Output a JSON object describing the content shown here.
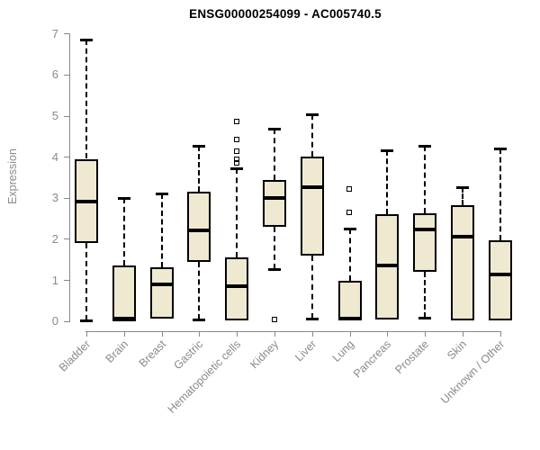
{
  "title": "ENSG00000254099 - AC005740.5",
  "chart_data": {
    "type": "boxplot",
    "title": "ENSG00000254099 - AC005740.5",
    "xlabel": "",
    "ylabel": "Expression",
    "ylim": [
      0,
      7
    ],
    "yticks": [
      0,
      1,
      2,
      3,
      4,
      5,
      6,
      7
    ],
    "grid": false,
    "x_label_rotation_deg": 45,
    "categories": [
      "Bladder",
      "Brain",
      "Breast",
      "Gastric",
      "Hematopoietic cells",
      "Kidney",
      "Liver",
      "Lung",
      "Pancreas",
      "Prostate",
      "Skin",
      "Unknown / Other"
    ],
    "boxes": [
      {
        "category": "Bladder",
        "whisker_low": 0.02,
        "q1": 1.9,
        "median": 2.9,
        "q3": 3.95,
        "whisker_high": 6.85,
        "outliers": []
      },
      {
        "category": "Brain",
        "whisker_low": 0.0,
        "q1": 0.0,
        "median": 0.05,
        "q3": 1.35,
        "whisker_high": 3.0,
        "outliers": []
      },
      {
        "category": "Breast",
        "whisker_low": 0.05,
        "q1": 0.05,
        "median": 0.9,
        "q3": 1.3,
        "whisker_high": 3.1,
        "outliers": []
      },
      {
        "category": "Gastric",
        "whisker_low": 0.03,
        "q1": 1.45,
        "median": 2.2,
        "q3": 3.15,
        "whisker_high": 4.27,
        "outliers": []
      },
      {
        "category": "Hematopoietic cells",
        "whisker_low": 0.02,
        "q1": 0.02,
        "median": 0.85,
        "q3": 1.55,
        "whisker_high": 3.72,
        "outliers": [
          3.85,
          3.92,
          4.13,
          4.4,
          4.85
        ]
      },
      {
        "category": "Kidney",
        "whisker_low": 1.27,
        "q1": 2.3,
        "median": 3.0,
        "q3": 3.44,
        "whisker_high": 4.68,
        "outliers": [
          0.02
        ]
      },
      {
        "category": "Liver",
        "whisker_low": 0.05,
        "q1": 1.6,
        "median": 3.27,
        "q3": 4.0,
        "whisker_high": 5.04,
        "outliers": []
      },
      {
        "category": "Lung",
        "whisker_low": 0.01,
        "q1": 0.01,
        "median": 0.05,
        "q3": 0.97,
        "whisker_high": 2.25,
        "outliers": [
          2.63,
          3.2
        ]
      },
      {
        "category": "Pancreas",
        "whisker_low": 0.04,
        "q1": 0.04,
        "median": 1.35,
        "q3": 2.6,
        "whisker_high": 4.15,
        "outliers": []
      },
      {
        "category": "Prostate",
        "whisker_low": 0.08,
        "q1": 1.2,
        "median": 2.22,
        "q3": 2.62,
        "whisker_high": 4.27,
        "outliers": []
      },
      {
        "category": "Skin",
        "whisker_low": 0.02,
        "q1": 0.02,
        "median": 2.05,
        "q3": 2.82,
        "whisker_high": 3.25,
        "outliers": []
      },
      {
        "category": "Unknown / Other",
        "whisker_low": 0.02,
        "q1": 0.02,
        "median": 1.13,
        "q3": 1.97,
        "whisker_high": 4.2,
        "outliers": []
      }
    ],
    "colors": {
      "box_fill": "#EFE9D1",
      "box_border": "#000000",
      "median": "#000000",
      "whisker": "#000000",
      "axis": "#888888",
      "tick_label": "#8a8a8a",
      "title": "#000000",
      "background": "#ffffff"
    }
  }
}
